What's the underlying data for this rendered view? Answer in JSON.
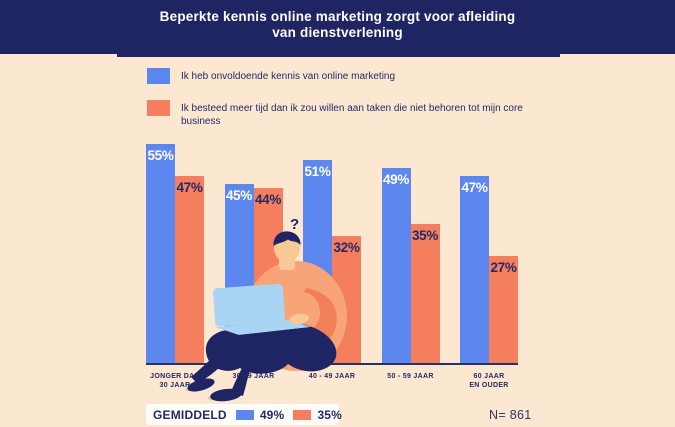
{
  "header": {
    "title_line1": "Beperkte kennis online marketing zorgt voor afleiding",
    "title_line2": "van dienstverlening"
  },
  "legend": {
    "items": [
      {
        "label": "Ik heb onvoldoende kennis van online marketing",
        "color": "#5c87ee"
      },
      {
        "label": "Ik besteed meer tijd dan ik zou willen aan taken die niet behoren tot mijn core business",
        "color": "#f57e5e"
      }
    ]
  },
  "chart_data": {
    "type": "bar",
    "categories": [
      "JONGER DAN 30 JAAR",
      "30-39 JAAR",
      "40 - 49 JAAR",
      "50 - 59 JAAR",
      "60 JAAR EN OUDER"
    ],
    "categories_lines": [
      [
        "JONGER DAN",
        "30 JAAR"
      ],
      [
        "30-39 JAAR"
      ],
      [
        "40 - 49 JAAR"
      ],
      [
        "50 - 59 JAAR"
      ],
      [
        "60 JAAR",
        "EN OUDER"
      ]
    ],
    "series": [
      {
        "name": "Ik heb onvoldoende kennis van online marketing",
        "color": "#5c87ee",
        "label_color": "#ffffff",
        "values": [
          55,
          45,
          51,
          49,
          47
        ]
      },
      {
        "name": "Ik besteed meer tijd dan ik zou willen aan taken die niet behoren tot mijn core business",
        "color": "#f57e5e",
        "label_color": "#222a66",
        "values": [
          47,
          44,
          32,
          35,
          27
        ]
      }
    ],
    "value_suffix": "%",
    "ylim": [
      0,
      56
    ],
    "grid": false,
    "legend_position": "top-left",
    "annotation": "?"
  },
  "footer": {
    "average_label": "GEMIDDELD",
    "averages": [
      {
        "value": "49%",
        "color": "#5c87ee"
      },
      {
        "value": "35%",
        "color": "#f57e5e"
      }
    ],
    "sample_size": "N= 861"
  },
  "colors": {
    "background": "#fce7d0",
    "navy": "#1f2562",
    "blue": "#5c87ee",
    "orange": "#f57e5e",
    "skin": "#f7c998",
    "body": "#f8a478",
    "laptop": "#a9d4f3"
  }
}
